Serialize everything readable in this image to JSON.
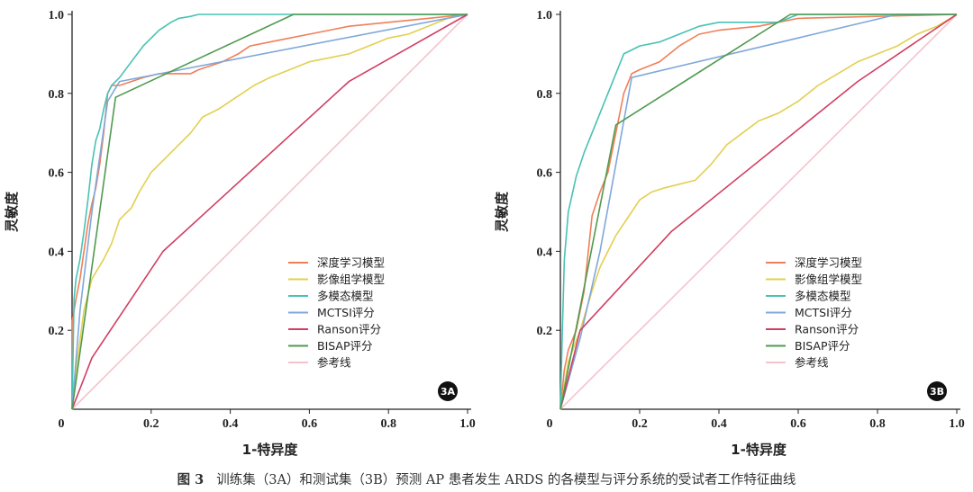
{
  "caption": {
    "label": "图 3",
    "text": "训练集（3A）和测试集（3B）预测 AP 患者发生 ARDS 的各模型与评分系统的受试者工作特征曲线"
  },
  "colors": {
    "深度学习模型": "#f07f58",
    "影像组学模型": "#e3cf4f",
    "多模态模型": "#47c2b4",
    "MCTSI评分": "#7fa8da",
    "Ranson评分": "#d13e62",
    "BISAP评分": "#4f9a4f",
    "参考线": "#f4c3cd"
  },
  "chart_data": [
    {
      "type": "line",
      "panel": "3A",
      "xlabel": "1-特异度",
      "ylabel": "灵敏度",
      "xlim": [
        0,
        1
      ],
      "ylim": [
        0,
        1
      ],
      "x_ticks": [
        "0",
        "0.2",
        "0.4",
        "0.6",
        "0.8",
        "1.0"
      ],
      "y_ticks": [
        "0.2",
        "0.4",
        "0.6",
        "0.8",
        "1.0"
      ],
      "series": [
        {
          "name": "深度学习模型",
          "x": [
            0,
            0,
            0.01,
            0.02,
            0.03,
            0.04,
            0.05,
            0.06,
            0.07,
            0.08,
            0.09,
            0.1,
            0.12,
            0.15,
            0.18,
            0.22,
            0.25,
            0.3,
            0.32,
            0.38,
            0.42,
            0.45,
            0.5,
            0.55,
            0.6,
            0.65,
            0.7,
            0.8,
            0.9,
            1.0
          ],
          "y": [
            0,
            0.22,
            0.28,
            0.33,
            0.4,
            0.47,
            0.52,
            0.56,
            0.62,
            0.7,
            0.8,
            0.82,
            0.82,
            0.83,
            0.84,
            0.85,
            0.85,
            0.85,
            0.86,
            0.88,
            0.9,
            0.92,
            0.93,
            0.94,
            0.95,
            0.96,
            0.97,
            0.98,
            0.99,
            1.0
          ]
        },
        {
          "name": "影像组学模型",
          "x": [
            0,
            0.01,
            0.03,
            0.05,
            0.08,
            0.1,
            0.12,
            0.15,
            0.17,
            0.2,
            0.23,
            0.26,
            0.3,
            0.33,
            0.37,
            0.4,
            0.43,
            0.46,
            0.5,
            0.55,
            0.6,
            0.65,
            0.7,
            0.75,
            0.8,
            0.85,
            0.9,
            0.95,
            1.0
          ],
          "y": [
            0,
            0.1,
            0.25,
            0.33,
            0.38,
            0.42,
            0.48,
            0.51,
            0.55,
            0.6,
            0.63,
            0.66,
            0.7,
            0.74,
            0.76,
            0.78,
            0.8,
            0.82,
            0.84,
            0.86,
            0.88,
            0.89,
            0.9,
            0.92,
            0.94,
            0.95,
            0.97,
            0.99,
            1.0
          ]
        },
        {
          "name": "多模态模型",
          "x": [
            0,
            0.005,
            0.01,
            0.02,
            0.03,
            0.04,
            0.05,
            0.06,
            0.07,
            0.08,
            0.09,
            0.1,
            0.12,
            0.15,
            0.18,
            0.2,
            0.22,
            0.25,
            0.27,
            0.3,
            0.32,
            0.35,
            1.0
          ],
          "y": [
            0,
            0.28,
            0.33,
            0.38,
            0.45,
            0.53,
            0.62,
            0.68,
            0.71,
            0.76,
            0.8,
            0.82,
            0.84,
            0.88,
            0.92,
            0.94,
            0.96,
            0.98,
            0.99,
            0.995,
            1.0,
            1.0,
            1.0
          ]
        },
        {
          "name": "MCTSI评分",
          "x": [
            0,
            0.02,
            0.05,
            0.09,
            0.12,
            1.0
          ],
          "y": [
            0,
            0.25,
            0.5,
            0.78,
            0.83,
            1.0
          ]
        },
        {
          "name": "Ranson评分",
          "x": [
            0,
            0.05,
            0.23,
            0.7,
            1.0
          ],
          "y": [
            0,
            0.13,
            0.4,
            0.83,
            1.0
          ]
        },
        {
          "name": "BISAP评分",
          "x": [
            0,
            0.11,
            0.56,
            1.0
          ],
          "y": [
            0,
            0.79,
            1.0,
            1.0
          ]
        },
        {
          "name": "参考线",
          "x": [
            0,
            1.0
          ],
          "y": [
            0,
            1.0
          ]
        }
      ],
      "legend": [
        "深度学习模型",
        "影像组学模型",
        "多模态模型",
        "MCTSI评分",
        "Ranson评分",
        "BISAP评分",
        "参考线"
      ],
      "legend_position": "bottom-right",
      "badge": "3A"
    },
    {
      "type": "line",
      "panel": "3B",
      "xlabel": "1-特异度",
      "ylabel": "灵敏度",
      "xlim": [
        0,
        1
      ],
      "ylim": [
        0,
        1
      ],
      "x_ticks": [
        "0",
        "0.2",
        "0.4",
        "0.6",
        "0.8",
        "1.0"
      ],
      "y_ticks": [
        "0.2",
        "0.4",
        "0.6",
        "0.8",
        "1.0"
      ],
      "series": [
        {
          "name": "深度学习模型",
          "x": [
            0,
            0.01,
            0.02,
            0.04,
            0.06,
            0.08,
            0.1,
            0.12,
            0.14,
            0.16,
            0.18,
            0.2,
            0.25,
            0.3,
            0.35,
            0.4,
            0.5,
            0.55,
            0.6,
            1.0
          ],
          "y": [
            0,
            0.1,
            0.15,
            0.2,
            0.3,
            0.49,
            0.55,
            0.6,
            0.7,
            0.8,
            0.85,
            0.86,
            0.88,
            0.92,
            0.95,
            0.96,
            0.97,
            0.98,
            0.99,
            1.0
          ]
        },
        {
          "name": "影像组学模型",
          "x": [
            0,
            0.02,
            0.05,
            0.08,
            0.1,
            0.12,
            0.14,
            0.16,
            0.18,
            0.2,
            0.23,
            0.26,
            0.3,
            0.34,
            0.38,
            0.42,
            0.46,
            0.5,
            0.55,
            0.6,
            0.65,
            0.7,
            0.75,
            0.8,
            0.85,
            0.9,
            0.95,
            1.0
          ],
          "y": [
            0,
            0.12,
            0.2,
            0.3,
            0.36,
            0.4,
            0.44,
            0.47,
            0.5,
            0.53,
            0.55,
            0.56,
            0.57,
            0.58,
            0.62,
            0.67,
            0.7,
            0.73,
            0.75,
            0.78,
            0.82,
            0.85,
            0.88,
            0.9,
            0.92,
            0.95,
            0.97,
            1.0
          ]
        },
        {
          "name": "多模态模型",
          "x": [
            0,
            0.005,
            0.01,
            0.02,
            0.04,
            0.06,
            0.08,
            0.1,
            0.12,
            0.14,
            0.16,
            0.18,
            0.2,
            0.25,
            0.3,
            0.35,
            0.4,
            0.55,
            0.6,
            1.0
          ],
          "y": [
            0,
            0.2,
            0.38,
            0.5,
            0.59,
            0.65,
            0.7,
            0.75,
            0.8,
            0.85,
            0.9,
            0.91,
            0.92,
            0.93,
            0.95,
            0.97,
            0.98,
            0.98,
            1.0,
            1.0
          ]
        },
        {
          "name": "MCTSI评分",
          "x": [
            0,
            0.05,
            0.1,
            0.18,
            0.85,
            1.0
          ],
          "y": [
            0,
            0.18,
            0.4,
            0.84,
            1.0,
            1.0
          ]
        },
        {
          "name": "Ranson评分",
          "x": [
            0,
            0.05,
            0.28,
            0.75,
            1.0
          ],
          "y": [
            0,
            0.2,
            0.45,
            0.83,
            1.0
          ]
        },
        {
          "name": "BISAP评分",
          "x": [
            0,
            0.14,
            0.58,
            1.0
          ],
          "y": [
            0,
            0.72,
            1.0,
            1.0
          ]
        },
        {
          "name": "参考线",
          "x": [
            0,
            1.0
          ],
          "y": [
            0,
            1.0
          ]
        }
      ],
      "legend": [
        "深度学习模型",
        "影像组学模型",
        "多模态模型",
        "MCTSI评分",
        "Ranson评分",
        "BISAP评分",
        "参考线"
      ],
      "legend_position": "bottom-right",
      "badge": "3B"
    }
  ]
}
